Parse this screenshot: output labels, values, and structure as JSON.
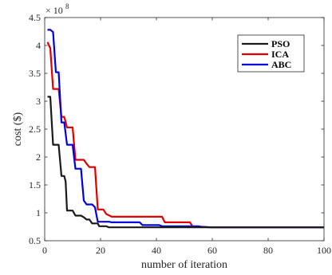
{
  "chart_data": {
    "type": "line",
    "xlabel": "number of iteration",
    "ylabel": "cost ($)",
    "y_multiplier_base": "× 10",
    "y_multiplier_exp": "8",
    "xlim": [
      0,
      100
    ],
    "ylim": [
      0.5,
      4.5
    ],
    "x_ticks": [
      "0",
      "20",
      "40",
      "60",
      "80",
      "100"
    ],
    "y_ticks": [
      "0.5",
      "1",
      "1.5",
      "2",
      "2.5",
      "3",
      "3.5",
      "4",
      "4.5"
    ],
    "legend_position": "top-right",
    "grid": false,
    "series": [
      {
        "name": "PSO",
        "color": "#1a1a1a",
        "points": [
          [
            1,
            3.08
          ],
          [
            2,
            3.08
          ],
          [
            3,
            2.22
          ],
          [
            5,
            2.22
          ],
          [
            6,
            1.66
          ],
          [
            7,
            1.66
          ],
          [
            7.5,
            1.56
          ],
          [
            8,
            1.04
          ],
          [
            10,
            1.04
          ],
          [
            11,
            0.95
          ],
          [
            13,
            0.95
          ],
          [
            14,
            0.92
          ],
          [
            15,
            0.88
          ],
          [
            16,
            0.88
          ],
          [
            17,
            0.81
          ],
          [
            19,
            0.81
          ],
          [
            19.5,
            0.76
          ],
          [
            22,
            0.76
          ],
          [
            23,
            0.74
          ],
          [
            60,
            0.74
          ],
          [
            100,
            0.74
          ]
        ]
      },
      {
        "name": "ICA",
        "color": "#e00000",
        "points": [
          [
            1,
            4.06
          ],
          [
            2,
            3.95
          ],
          [
            3,
            3.22
          ],
          [
            5,
            3.22
          ],
          [
            6,
            2.72
          ],
          [
            7,
            2.72
          ],
          [
            8,
            2.53
          ],
          [
            10,
            2.53
          ],
          [
            11,
            1.95
          ],
          [
            14,
            1.95
          ],
          [
            15,
            1.88
          ],
          [
            16,
            1.82
          ],
          [
            18,
            1.82
          ],
          [
            19,
            1.06
          ],
          [
            21,
            1.06
          ],
          [
            22,
            0.98
          ],
          [
            24,
            0.93
          ],
          [
            42,
            0.93
          ],
          [
            43,
            0.83
          ],
          [
            52,
            0.83
          ],
          [
            53,
            0.75
          ],
          [
            60,
            0.74
          ],
          [
            100,
            0.74
          ]
        ]
      },
      {
        "name": "ABC",
        "color": "#0000e0",
        "points": [
          [
            1,
            4.28
          ],
          [
            2,
            4.28
          ],
          [
            3,
            4.24
          ],
          [
            4,
            3.52
          ],
          [
            5,
            3.52
          ],
          [
            6,
            2.62
          ],
          [
            7,
            2.62
          ],
          [
            8,
            2.22
          ],
          [
            10,
            2.22
          ],
          [
            11,
            1.79
          ],
          [
            13,
            1.79
          ],
          [
            14,
            1.22
          ],
          [
            15,
            1.15
          ],
          [
            17,
            1.15
          ],
          [
            18,
            1.1
          ],
          [
            19,
            0.84
          ],
          [
            23,
            0.84
          ],
          [
            24,
            0.83
          ],
          [
            34,
            0.83
          ],
          [
            35,
            0.78
          ],
          [
            41,
            0.78
          ],
          [
            42,
            0.76
          ],
          [
            55,
            0.76
          ],
          [
            56,
            0.75
          ],
          [
            60,
            0.74
          ],
          [
            100,
            0.74
          ]
        ]
      }
    ]
  }
}
